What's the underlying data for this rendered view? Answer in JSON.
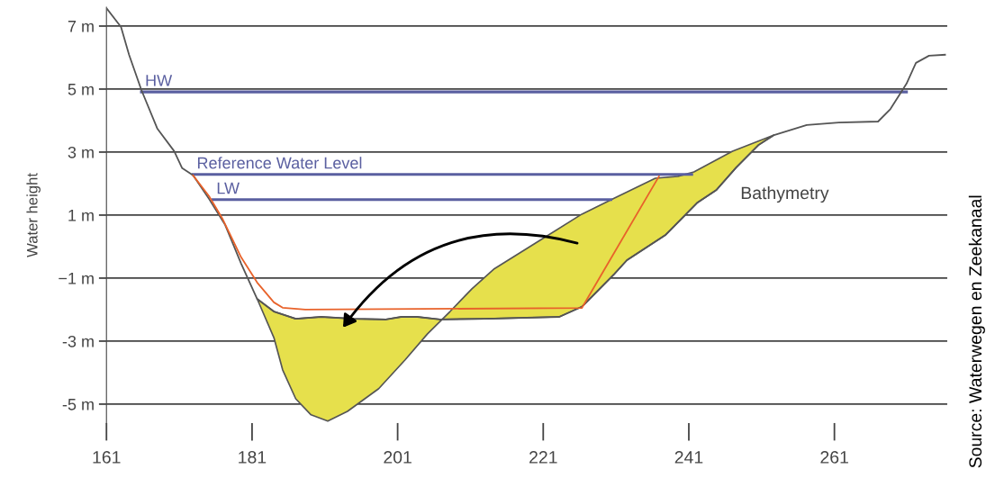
{
  "chart_data": {
    "type": "line",
    "ylabel": "Water height",
    "xlim": [
      161,
      276.5
    ],
    "ylim": [
      -5.6,
      7.6
    ],
    "xticks": [
      161,
      181,
      201,
      221,
      241,
      261
    ],
    "yticks": [
      {
        "value": 7,
        "label": "7 m"
      },
      {
        "value": 5,
        "label": "5 m"
      },
      {
        "value": 3,
        "label": "3 m"
      },
      {
        "value": 1,
        "label": "1 m"
      },
      {
        "value": -1,
        "label": "−1 m"
      },
      {
        "value": -3,
        "label": "-3 m"
      },
      {
        "value": -5,
        "label": "-5 m"
      }
    ],
    "grid": "y",
    "series": [
      {
        "type": "area",
        "color": "#e6e04c",
        "x": [
          181.7,
          184,
          185.2,
          187,
          189.1,
          191.4,
          194.1,
          198.4,
          202,
          205.1,
          208.2,
          211.2,
          214.3,
          219.8,
          226.3,
          230.8,
          236.4,
          239.5,
          241.7,
          247,
          252.7,
          250.6,
          247.5,
          244.8,
          242.2,
          237.8,
          232.5,
          230.8,
          226.3,
          223.2,
          213.1,
          206.8,
          203.7,
          201.5,
          199.4,
          195,
          190.5,
          187,
          184
        ],
        "values": [
          -1.66,
          -2.89,
          -3.91,
          -4.83,
          -5.34,
          -5.54,
          -5.23,
          -4.51,
          -3.6,
          -2.77,
          -2.06,
          -1.34,
          -0.7,
          0.09,
          1.03,
          1.54,
          2.17,
          2.23,
          2.37,
          3.03,
          3.54,
          3.23,
          2.51,
          1.8,
          1.4,
          0.37,
          -0.43,
          -0.86,
          -1.91,
          -2.23,
          -2.29,
          -2.31,
          -2.23,
          -2.23,
          -2.31,
          -2.29,
          -2.23,
          -2.29,
          -2.06
        ]
      },
      {
        "color": "#555555",
        "x": [
          161.1,
          163,
          164.1,
          165.8,
          168,
          170.3,
          171.4,
          172.9,
          175.1,
          177.3,
          179.5,
          181.7,
          184,
          187,
          190.5,
          195,
          199.4,
          201.5,
          203.7,
          206.8,
          213.1,
          223.2,
          226.3,
          230.8,
          232.5,
          237.8,
          242.2,
          244.8,
          247.5,
          250.6,
          252.7,
          257.2,
          261.6,
          267,
          268.7,
          270.9,
          272.2,
          274,
          276.2
        ],
        "values": [
          7.54,
          6.97,
          6.09,
          4.97,
          3.74,
          3.03,
          2.49,
          2.26,
          1.51,
          0.69,
          -0.54,
          -1.66,
          -2.06,
          -2.29,
          -2.23,
          -2.29,
          -2.31,
          -2.23,
          -2.23,
          -2.31,
          -2.29,
          -2.23,
          -1.91,
          -0.86,
          -0.43,
          0.37,
          1.4,
          1.8,
          2.51,
          3.23,
          3.54,
          3.86,
          3.94,
          3.97,
          4.37,
          5.17,
          5.83,
          6.06,
          6.09
        ]
      },
      {
        "color": "#e8622a",
        "x": [
          172.9,
          175.1,
          176.9,
          179.5,
          181.7,
          184,
          185.2,
          188.3,
          226.3,
          236.9
        ],
        "values": [
          2.26,
          1.6,
          0.9,
          -0.34,
          -1.14,
          -1.77,
          -1.94,
          -2.0,
          -1.95,
          2.23
        ]
      },
      {
        "name": "HW",
        "color": "#5a5fa0",
        "x": [
          165.8,
          270.9
        ],
        "values": [
          4.91,
          4.91
        ]
      },
      {
        "name": "Reference Water Level",
        "color": "#5a5fa0",
        "x": [
          172.9,
          241.4
        ],
        "values": [
          2.29,
          2.29
        ]
      },
      {
        "name": "LW",
        "color": "#5a5fa0",
        "x": [
          175.6,
          230.3
        ],
        "values": [
          1.49,
          1.49
        ]
      }
    ],
    "annotations": [
      "Bathymetry",
      "Source: Waterwegen en Zeekanaal"
    ]
  }
}
